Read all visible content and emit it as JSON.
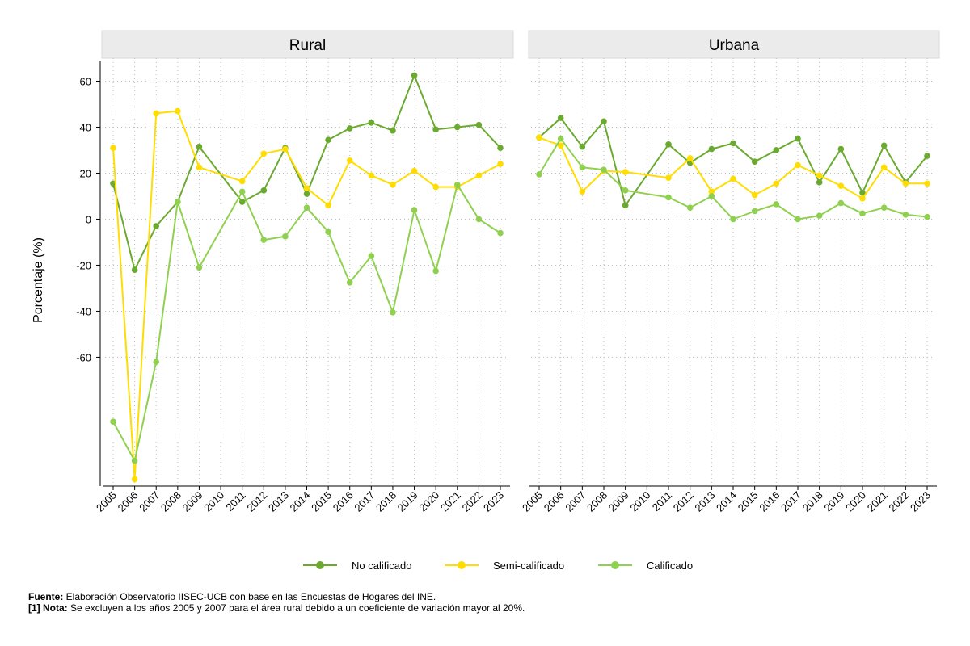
{
  "chart_data": {
    "type": "line",
    "ylabel": "Porcentaje (%)",
    "xlabel": "",
    "y_ticks": [
      60,
      40,
      20,
      0,
      -20,
      -40,
      -60
    ],
    "y_tick_labels": [
      "60",
      "40",
      "20",
      "0",
      "-20",
      "-40",
      "-60"
    ],
    "ylim": [
      -116,
      70
    ],
    "categories": [
      "2005",
      "2006",
      "2007",
      "2008",
      "2009",
      "2010",
      "2011",
      "2012",
      "2013",
      "2014",
      "2015",
      "2016",
      "2017",
      "2018",
      "2019",
      "2020",
      "2021",
      "2022",
      "2023"
    ],
    "grid": true,
    "legend_position": "bottom",
    "series_colors": [
      "#6aaa2f",
      "#ffdd00",
      "#8fd14f"
    ],
    "panels": [
      {
        "title": "Rural",
        "series": [
          {
            "name": "No calificado",
            "values": [
              15.5,
              -22,
              -3,
              7.5,
              31.5,
              null,
              7.5,
              12.5,
              31,
              11,
              34.5,
              39.5,
              42,
              38.5,
              62.5,
              39,
              40,
              41,
              31
            ]
          },
          {
            "name": "Semi-calificado",
            "values": [
              31,
              -113,
              46,
              47,
              22.5,
              null,
              16.5,
              28.5,
              30.5,
              13.5,
              6,
              25.5,
              19,
              15,
              21,
              14,
              14,
              19,
              24
            ]
          },
          {
            "name": "Calificado",
            "values": [
              -88,
              -105,
              -62,
              7.5,
              -21,
              null,
              12,
              -9,
              -7.5,
              5,
              -5.5,
              -27.5,
              -16,
              -40.5,
              4,
              -22.5,
              15,
              0,
              -6
            ]
          }
        ]
      },
      {
        "title": "Urbana",
        "series": [
          {
            "name": "No calificado",
            "values": [
              35.5,
              44,
              31.5,
              42.5,
              6,
              null,
              32.5,
              24.5,
              30.5,
              33,
              25,
              30,
              35,
              16,
              30.5,
              11.5,
              32,
              16,
              27.5
            ]
          },
          {
            "name": "Semi-calificado",
            "values": [
              35.5,
              32,
              12,
              21,
              20.5,
              null,
              18,
              26.5,
              12,
              17.5,
              10.5,
              15.5,
              23.5,
              19,
              14.5,
              9,
              22.5,
              15.5,
              15.5
            ]
          },
          {
            "name": "Calificado",
            "values": [
              19.5,
              35,
              22.5,
              21.5,
              12.5,
              null,
              9.5,
              5,
              10,
              0,
              3.5,
              6.5,
              0,
              1.5,
              7,
              2.5,
              5,
              2,
              1
            ]
          }
        ]
      }
    ]
  },
  "footnote": {
    "source_label": "Fuente:",
    "source_text": " Elaboración Observatorio IISEC-UCB con base en las Encuestas de Hogares del INE.",
    "note_label": "[1] Nota:",
    "note_text": " Se excluyen a los años 2005 y 2007 para el área rural debido a un coeficiente de variación mayor al 20%."
  }
}
